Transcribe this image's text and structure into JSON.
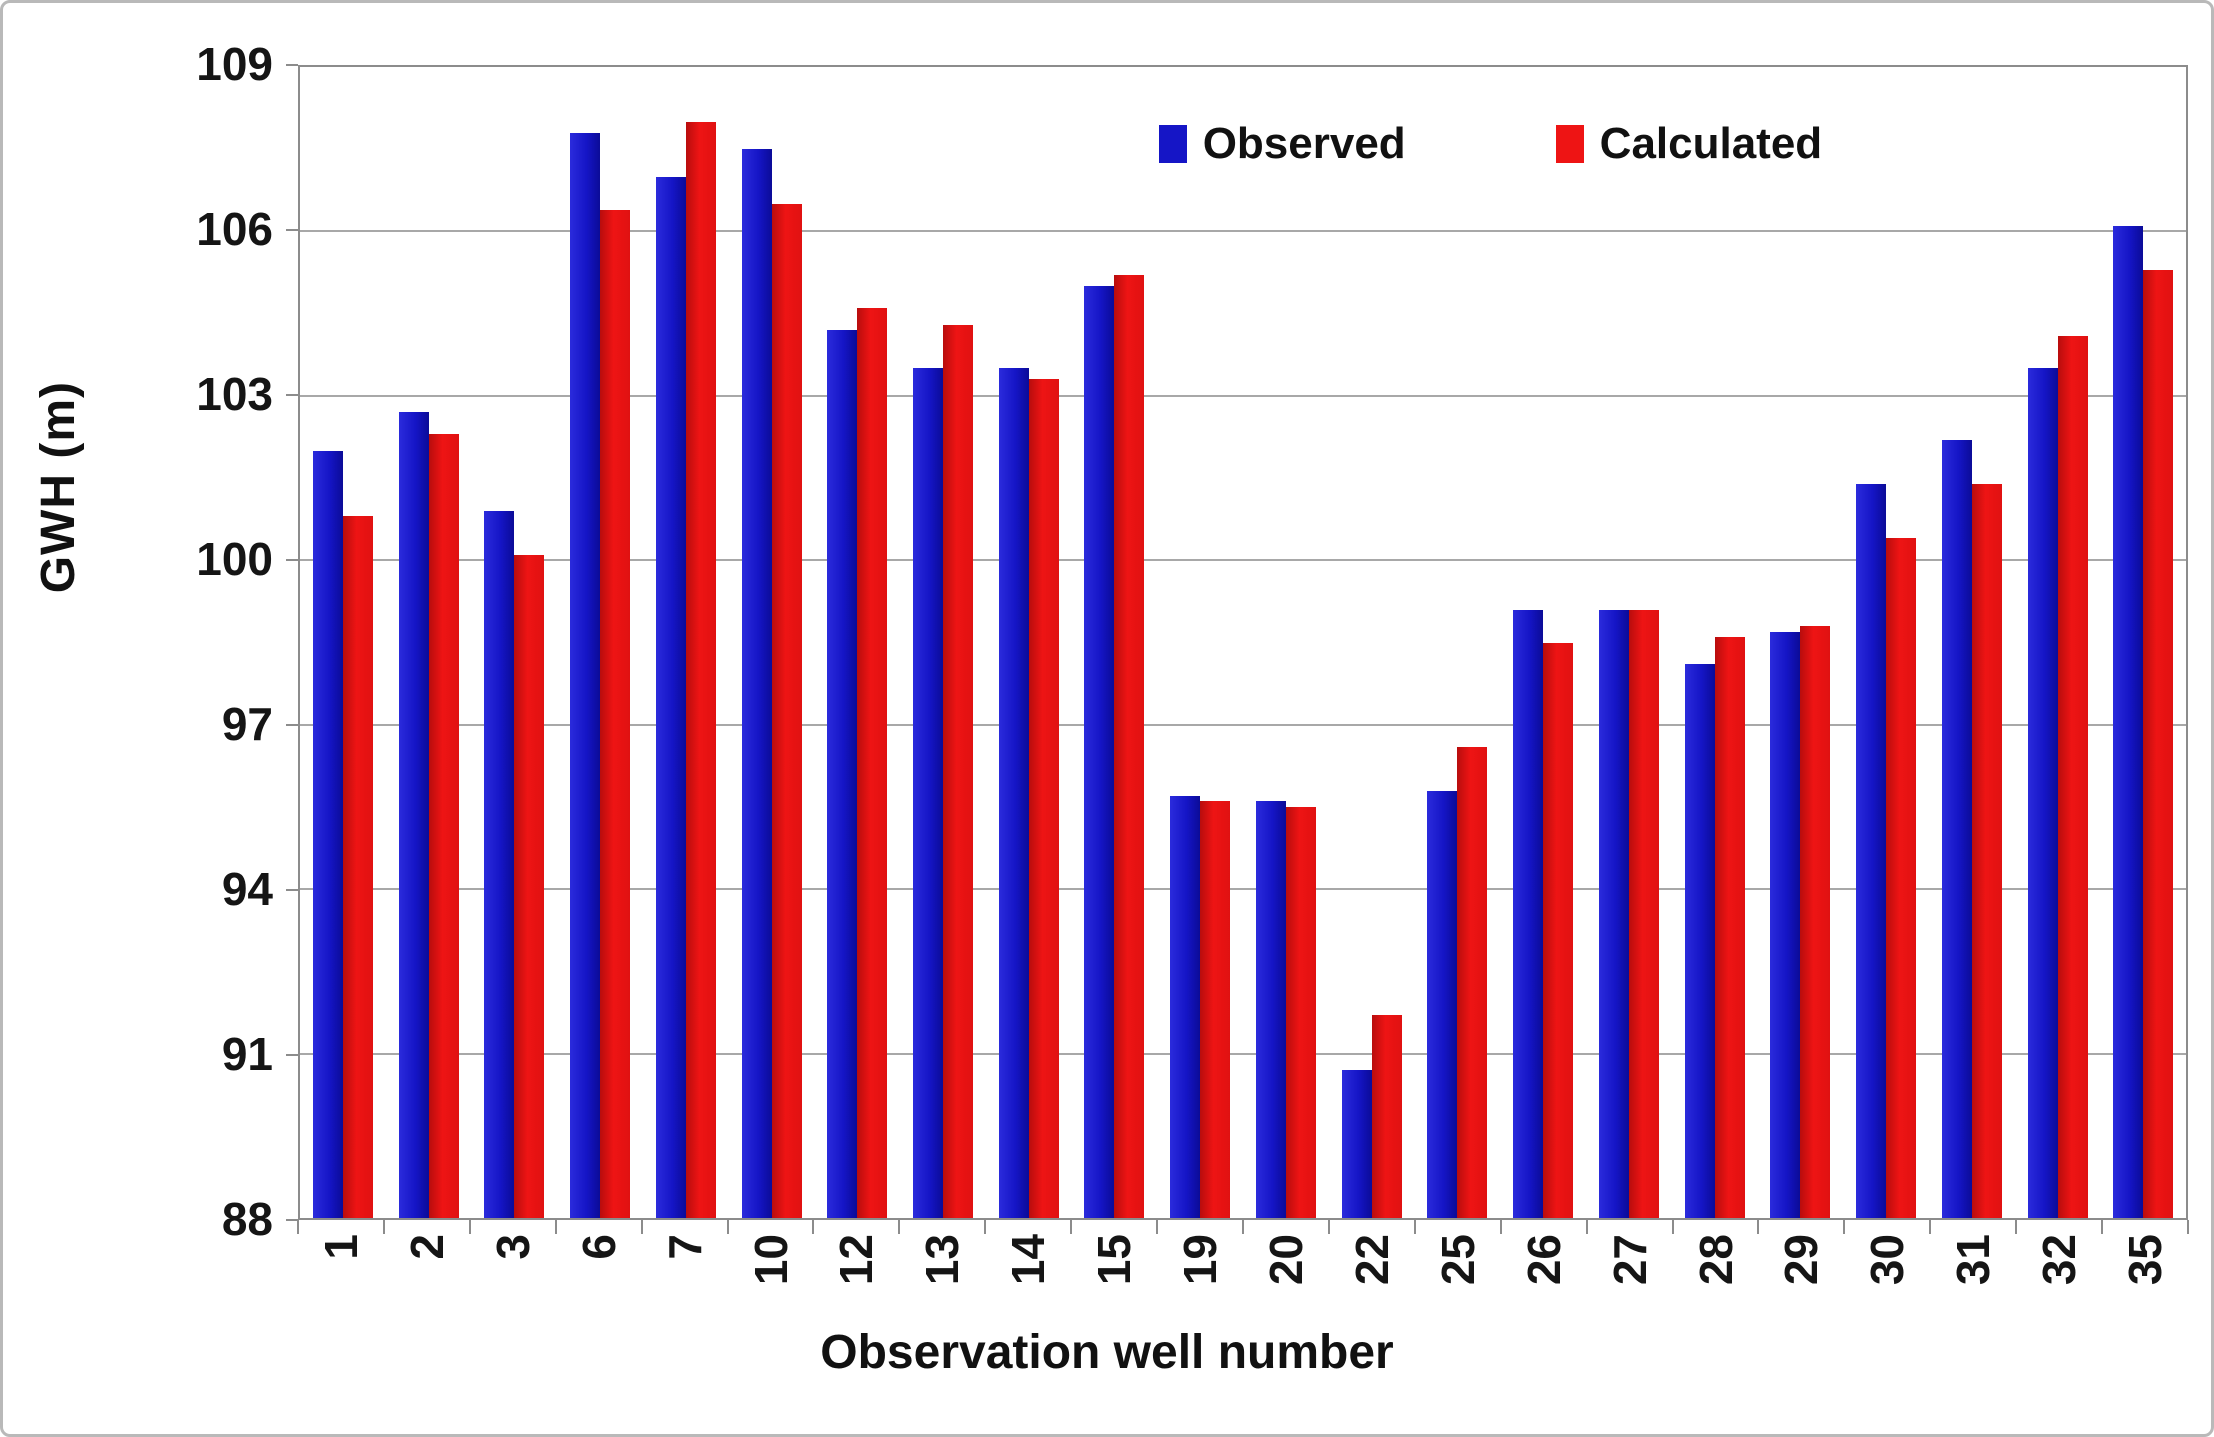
{
  "figure_title": "",
  "legend": {
    "observed_label": "Observed",
    "calculated_label": "Calculated",
    "position": "top-center-inside"
  },
  "colors": {
    "observed": "#1515c6",
    "calculated": "#ee1414",
    "gridline": "#a8a8a8",
    "axis": "#8c8c8c",
    "figure_border": "#b9b9b9",
    "text": "#111111"
  },
  "chart_data": {
    "type": "bar",
    "title": "",
    "xlabel": "Observation well number",
    "ylabel": "GWH (m)",
    "ylim": [
      88,
      109
    ],
    "yticks": [
      88,
      91,
      94,
      97,
      100,
      103,
      106,
      109
    ],
    "grid": "horizontal",
    "legend_position": "top-center-inside",
    "categories": [
      "1",
      "2",
      "3",
      "6",
      "7",
      "10",
      "12",
      "13",
      "14",
      "15",
      "19",
      "20",
      "22",
      "25",
      "26",
      "27",
      "28",
      "29",
      "30",
      "31",
      "32",
      "35"
    ],
    "series": [
      {
        "name": "Observed",
        "color": "#1515c6",
        "values": [
          102.0,
          102.7,
          100.9,
          107.8,
          107.0,
          107.5,
          104.2,
          103.5,
          103.5,
          105.0,
          95.7,
          95.6,
          90.7,
          95.8,
          99.1,
          99.1,
          98.1,
          98.7,
          101.4,
          102.2,
          103.5,
          106.1
        ]
      },
      {
        "name": "Calculated",
        "color": "#ee1414",
        "values": [
          100.8,
          102.3,
          100.1,
          106.4,
          108.0,
          106.5,
          104.6,
          104.3,
          103.3,
          105.2,
          95.6,
          95.5,
          91.7,
          96.6,
          98.5,
          99.1,
          98.6,
          98.8,
          100.4,
          101.4,
          104.1,
          105.3
        ]
      }
    ]
  }
}
